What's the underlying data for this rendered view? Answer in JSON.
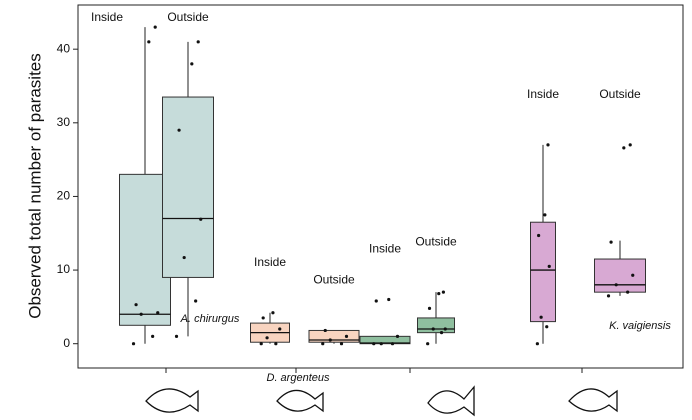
{
  "chart_data": {
    "type": "box",
    "y_label": "Observed total number of parasites",
    "ylim": [
      -3.3,
      46
    ],
    "yticks": [
      0,
      10,
      20,
      30,
      40
    ],
    "boxes": [
      {
        "label": "Inside",
        "color": "#c6dcda",
        "min": 0,
        "q1": 2.5,
        "median": 4,
        "q3": 23,
        "max": 43,
        "points": [
          0,
          1,
          4,
          4.2,
          5.3,
          41,
          43
        ]
      },
      {
        "label": "Outside",
        "color": "#c6dcda",
        "min": 1,
        "q1": 9,
        "median": 17,
        "q3": 33.5,
        "max": 41,
        "points": [
          1,
          5.8,
          11.7,
          16.9,
          29,
          38,
          41
        ]
      },
      {
        "label": "Inside",
        "color": "#f8d4c0",
        "min": 0,
        "q1": 0.2,
        "median": 1.5,
        "q3": 2.8,
        "max": 4.2,
        "points": [
          0,
          0,
          0.8,
          2,
          3.5,
          4.2
        ]
      },
      {
        "label": "Outside",
        "color": "#f8d4c0",
        "min": 0,
        "q1": 0.2,
        "median": 0.5,
        "q3": 1.8,
        "max": 1.8,
        "points": [
          0,
          0,
          0.5,
          1,
          1.8
        ]
      },
      {
        "label": "Inside",
        "color": "#8fbf9f",
        "min": 0,
        "q1": 0,
        "median": 0.1,
        "q3": 1,
        "max": 1,
        "points": [
          0,
          0,
          0,
          1,
          5.8,
          6
        ]
      },
      {
        "label": "Outside",
        "color": "#8fbf9f",
        "min": 0,
        "q1": 1.5,
        "median": 2,
        "q3": 3.5,
        "max": 7,
        "points": [
          0,
          1.5,
          2,
          2,
          4.8,
          6.8,
          7
        ]
      },
      {
        "label": "Inside",
        "color": "#d8a9d3",
        "min": 0,
        "q1": 3,
        "median": 10,
        "q3": 16.5,
        "max": 27,
        "points": [
          0,
          2.3,
          3.6,
          10.5,
          14.7,
          17.5,
          27
        ]
      },
      {
        "label": "Outside",
        "color": "#d8a9d3",
        "min": 6.5,
        "q1": 7,
        "median": 8,
        "q3": 11.5,
        "max": 14,
        "points": [
          6.5,
          7,
          8,
          9.3,
          13.8,
          26.6,
          27
        ]
      }
    ],
    "species_labels": [
      "A. chirurgus",
      "D. argenteus",
      "K. vaigiensis"
    ]
  }
}
